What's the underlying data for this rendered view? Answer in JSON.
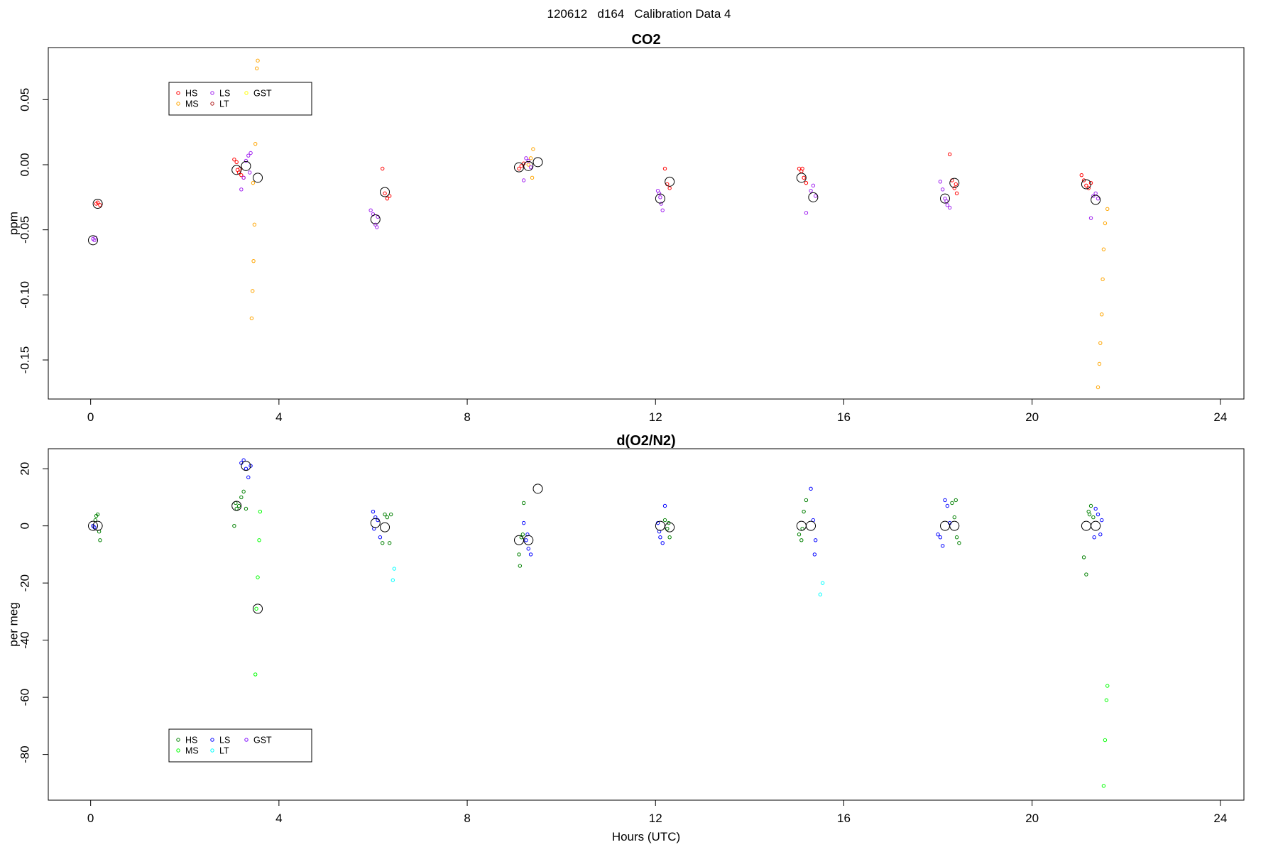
{
  "page_title": "120612   d164   Calibration Data 4",
  "chart_data": [
    {
      "type": "scatter",
      "title": "CO2",
      "xlabel": "",
      "ylabel": "ppm",
      "xlim": [
        -0.9,
        24.5
      ],
      "ylim": [
        -0.18,
        0.09
      ],
      "x_ticks": [
        0,
        4,
        8,
        12,
        16,
        20,
        24
      ],
      "y_ticks": [
        -0.15,
        -0.1,
        -0.05,
        0.0,
        0.05
      ],
      "x_tick_labels": [
        "0",
        "4",
        "8",
        "12",
        "16",
        "20",
        "24"
      ],
      "y_tick_labels": [
        "-0.15",
        "-0.10",
        "-0.05",
        "0.00",
        "0.05"
      ],
      "grid": false,
      "legend_position": "top-left",
      "series": [
        {
          "name": "HS",
          "color": "#ff0000",
          "points": [
            [
              0.15,
              -0.029
            ],
            [
              0.2,
              -0.031
            ],
            [
              0.12,
              -0.03
            ],
            [
              3.05,
              0.004
            ],
            [
              3.1,
              0.002
            ],
            [
              3.12,
              -0.004
            ],
            [
              3.15,
              -0.006
            ],
            [
              3.2,
              -0.008
            ],
            [
              3.25,
              -0.01
            ],
            [
              3.18,
              -0.003
            ],
            [
              6.2,
              -0.003
            ],
            [
              6.25,
              -0.022
            ],
            [
              6.3,
              -0.026
            ],
            [
              6.35,
              -0.024
            ],
            [
              9.1,
              -0.003
            ],
            [
              9.15,
              -0.001
            ],
            [
              9.2,
              0.001
            ],
            [
              12.2,
              -0.003
            ],
            [
              12.25,
              -0.015
            ],
            [
              12.3,
              -0.018
            ],
            [
              15.05,
              -0.003
            ],
            [
              15.1,
              -0.005
            ],
            [
              15.15,
              -0.01
            ],
            [
              15.2,
              -0.014
            ],
            [
              15.12,
              -0.003
            ],
            [
              18.25,
              0.008
            ],
            [
              18.3,
              -0.012
            ],
            [
              18.35,
              -0.018
            ],
            [
              18.4,
              -0.022
            ],
            [
              18.38,
              -0.015
            ],
            [
              21.05,
              -0.008
            ],
            [
              21.1,
              -0.012
            ],
            [
              21.15,
              -0.016
            ],
            [
              21.2,
              -0.018
            ],
            [
              21.25,
              -0.014
            ]
          ]
        },
        {
          "name": "MS",
          "color": "#ffa500",
          "points": [
            [
              3.55,
              0.08
            ],
            [
              3.53,
              0.074
            ],
            [
              3.5,
              0.016
            ],
            [
              3.45,
              -0.014
            ],
            [
              3.48,
              -0.046
            ],
            [
              3.46,
              -0.074
            ],
            [
              3.44,
              -0.097
            ],
            [
              3.42,
              -0.118
            ],
            [
              9.4,
              0.012
            ],
            [
              9.35,
              0.005
            ],
            [
              9.38,
              -0.01
            ],
            [
              9.3,
              0.0
            ],
            [
              21.6,
              -0.034
            ],
            [
              21.55,
              -0.045
            ],
            [
              21.52,
              -0.065
            ],
            [
              21.5,
              -0.088
            ],
            [
              21.48,
              -0.115
            ],
            [
              21.45,
              -0.137
            ],
            [
              21.43,
              -0.153
            ],
            [
              21.4,
              -0.171
            ]
          ]
        },
        {
          "name": "LS",
          "color": "#a020f0",
          "points": [
            [
              0.05,
              -0.057
            ],
            [
              0.08,
              -0.058
            ],
            [
              0.1,
              -0.056
            ],
            [
              3.3,
              0.003
            ],
            [
              3.35,
              0.007
            ],
            [
              3.4,
              0.009
            ],
            [
              3.38,
              -0.006
            ],
            [
              3.2,
              -0.019
            ],
            [
              3.25,
              -0.01
            ],
            [
              5.95,
              -0.035
            ],
            [
              6.0,
              -0.038
            ],
            [
              6.05,
              -0.046
            ],
            [
              6.08,
              -0.048
            ],
            [
              6.1,
              -0.04
            ],
            [
              9.2,
              -0.012
            ],
            [
              9.25,
              0.005
            ],
            [
              9.3,
              0.003
            ],
            [
              9.35,
              -0.002
            ],
            [
              12.05,
              -0.02
            ],
            [
              12.08,
              -0.022
            ],
            [
              12.1,
              -0.025
            ],
            [
              12.12,
              -0.03
            ],
            [
              12.15,
              -0.035
            ],
            [
              15.3,
              -0.02
            ],
            [
              15.35,
              -0.016
            ],
            [
              15.4,
              -0.024
            ],
            [
              15.2,
              -0.037
            ],
            [
              18.05,
              -0.013
            ],
            [
              18.1,
              -0.019
            ],
            [
              18.15,
              -0.026
            ],
            [
              18.2,
              -0.031
            ],
            [
              18.25,
              -0.033
            ],
            [
              18.18,
              -0.028
            ],
            [
              21.3,
              -0.024
            ],
            [
              21.35,
              -0.022
            ],
            [
              21.4,
              -0.026
            ],
            [
              21.25,
              -0.041
            ]
          ]
        },
        {
          "name": "LT",
          "color": "#b22222",
          "points": []
        },
        {
          "name": "GST",
          "color": "#ffff00",
          "points": []
        },
        {
          "name": "",
          "color": "#000000",
          "marker": "large-circle",
          "points": [
            [
              0.05,
              -0.058
            ],
            [
              0.15,
              -0.03
            ],
            [
              3.1,
              -0.004
            ],
            [
              3.3,
              -0.001
            ],
            [
              3.55,
              -0.01
            ],
            [
              6.05,
              -0.042
            ],
            [
              6.25,
              -0.021
            ],
            [
              9.1,
              -0.002
            ],
            [
              9.3,
              -0.001
            ],
            [
              9.5,
              0.002
            ],
            [
              12.1,
              -0.026
            ],
            [
              12.3,
              -0.013
            ],
            [
              15.1,
              -0.01
            ],
            [
              15.35,
              -0.025
            ],
            [
              18.15,
              -0.026
            ],
            [
              18.35,
              -0.014
            ],
            [
              21.15,
              -0.015
            ],
            [
              21.35,
              -0.027
            ]
          ]
        }
      ]
    },
    {
      "type": "scatter",
      "title": "d(O2/N2)",
      "xlabel": "Hours (UTC)",
      "ylabel": "per meg",
      "xlim": [
        -0.9,
        24.5
      ],
      "ylim": [
        -96,
        27
      ],
      "x_ticks": [
        0,
        4,
        8,
        12,
        16,
        20,
        24
      ],
      "y_ticks": [
        -80,
        -60,
        -40,
        -20,
        0,
        20
      ],
      "x_tick_labels": [
        "0",
        "4",
        "8",
        "12",
        "16",
        "20",
        "24"
      ],
      "y_tick_labels": [
        "-80",
        "-60",
        "-40",
        "-20",
        "0",
        "20"
      ],
      "grid": false,
      "legend_position": "bottom-left",
      "series": [
        {
          "name": "HS",
          "color": "#008000",
          "points": [
            [
              0.1,
              2
            ],
            [
              0.12,
              3.5
            ],
            [
              0.15,
              4
            ],
            [
              0.18,
              -2
            ],
            [
              0.2,
              -5
            ],
            [
              3.05,
              0
            ],
            [
              3.08,
              8
            ],
            [
              3.1,
              6
            ],
            [
              3.15,
              7
            ],
            [
              3.2,
              10
            ],
            [
              3.25,
              12
            ],
            [
              3.3,
              6
            ],
            [
              6.25,
              4
            ],
            [
              6.3,
              3
            ],
            [
              6.35,
              -6
            ],
            [
              6.2,
              -6
            ],
            [
              6.38,
              4
            ],
            [
              9.1,
              -10
            ],
            [
              9.12,
              -14
            ],
            [
              9.15,
              -4
            ],
            [
              9.18,
              -3
            ],
            [
              9.2,
              8
            ],
            [
              12.2,
              2
            ],
            [
              12.25,
              -1
            ],
            [
              12.3,
              -4
            ],
            [
              12.28,
              1
            ],
            [
              15.05,
              -3
            ],
            [
              15.1,
              -5
            ],
            [
              15.15,
              5
            ],
            [
              15.2,
              9
            ],
            [
              15.12,
              -1
            ],
            [
              18.3,
              8
            ],
            [
              18.35,
              3
            ],
            [
              18.4,
              -4
            ],
            [
              18.45,
              -6
            ],
            [
              18.38,
              9
            ],
            [
              21.1,
              -11
            ],
            [
              21.15,
              -17
            ],
            [
              21.2,
              5
            ],
            [
              21.25,
              7
            ],
            [
              21.3,
              3
            ],
            [
              21.22,
              4
            ]
          ]
        },
        {
          "name": "MS",
          "color": "#00ff00",
          "points": [
            [
              3.6,
              5
            ],
            [
              3.58,
              -5
            ],
            [
              3.55,
              -18
            ],
            [
              3.52,
              -29
            ],
            [
              3.5,
              -52
            ],
            [
              21.6,
              -56
            ],
            [
              21.58,
              -61
            ],
            [
              21.55,
              -75
            ],
            [
              21.52,
              -91
            ]
          ]
        },
        {
          "name": "LS",
          "color": "#0000ff",
          "points": [
            [
              0.05,
              0
            ],
            [
              0.08,
              -0.5
            ],
            [
              3.2,
              22
            ],
            [
              3.25,
              23
            ],
            [
              3.3,
              20
            ],
            [
              3.35,
              17
            ],
            [
              3.4,
              21
            ],
            [
              6.0,
              5
            ],
            [
              6.05,
              3
            ],
            [
              6.1,
              2
            ],
            [
              6.15,
              -4
            ],
            [
              6.02,
              -1
            ],
            [
              9.2,
              1
            ],
            [
              9.25,
              -5
            ],
            [
              9.3,
              -8
            ],
            [
              9.35,
              -10
            ],
            [
              9.28,
              -3
            ],
            [
              12.05,
              1
            ],
            [
              12.08,
              -2
            ],
            [
              12.1,
              -4
            ],
            [
              12.15,
              -6
            ],
            [
              12.2,
              7
            ],
            [
              15.3,
              13
            ],
            [
              15.35,
              2
            ],
            [
              15.4,
              -5
            ],
            [
              15.38,
              -10
            ],
            [
              18.0,
              -3
            ],
            [
              18.05,
              -4
            ],
            [
              18.1,
              -7
            ],
            [
              18.15,
              9
            ],
            [
              18.2,
              7
            ],
            [
              18.25,
              1
            ],
            [
              21.35,
              6
            ],
            [
              21.4,
              4
            ],
            [
              21.45,
              -3
            ],
            [
              21.48,
              2
            ],
            [
              21.32,
              -4
            ]
          ]
        },
        {
          "name": "LT",
          "color": "#00ffff",
          "points": [
            [
              6.45,
              -15
            ],
            [
              6.42,
              -19
            ],
            [
              15.55,
              -20
            ],
            [
              15.5,
              -24
            ]
          ]
        },
        {
          "name": "GST",
          "color": "#7b00ff",
          "points": []
        },
        {
          "name": "",
          "color": "#000000",
          "marker": "large-circle",
          "points": [
            [
              0.05,
              0
            ],
            [
              0.15,
              0
            ],
            [
              3.1,
              7
            ],
            [
              3.3,
              21
            ],
            [
              3.55,
              -29
            ],
            [
              6.05,
              1
            ],
            [
              6.25,
              -0.5
            ],
            [
              9.1,
              -5
            ],
            [
              9.3,
              -5
            ],
            [
              9.5,
              13
            ],
            [
              12.1,
              0
            ],
            [
              12.3,
              -0.5
            ],
            [
              15.1,
              0
            ],
            [
              15.3,
              0
            ],
            [
              18.15,
              0
            ],
            [
              18.35,
              0
            ],
            [
              21.15,
              0
            ],
            [
              21.35,
              0
            ]
          ]
        }
      ]
    }
  ]
}
